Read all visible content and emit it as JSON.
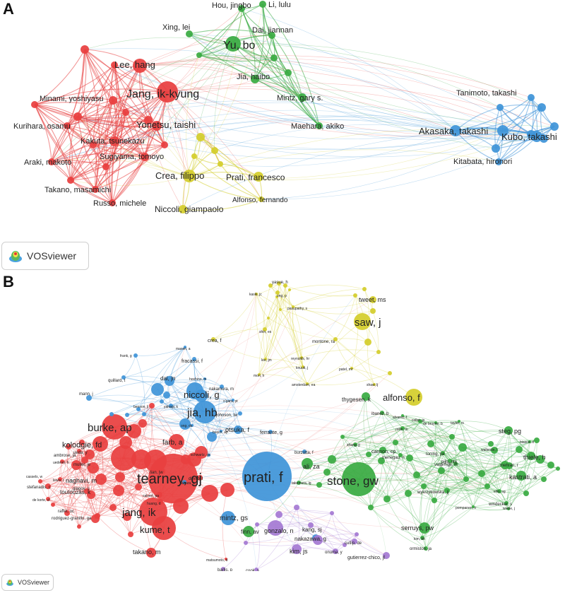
{
  "panels": {
    "a": {
      "letter": "A",
      "badge": "VOSviewer",
      "labels": [
        "Li, lulu",
        "Hou, jingbo",
        "Xing, lei",
        "Dai, jiannan",
        "Yu, bo",
        "Lee, hang",
        "Jang, ik-kyung",
        "Jia, haibo",
        "Minami, yoshiyasu",
        "Mintz, gary s.",
        "Tanimoto, takashi",
        "Yonetsu, taishi",
        "Kurihara, osamu",
        "Kakuta, tsunekazu",
        "Maehara, akiko",
        "Akasaka, takashi",
        "Kubo, takashi",
        "Sugiyama, tomoyo",
        "Araki, makoto",
        "Crea, filippo",
        "Prati, francesco",
        "Kitabata, hironori",
        "Takano, masamichi",
        "Alfonso, fernando",
        "Russo, michele",
        "Niccoli, giampaolo"
      ]
    },
    "b": {
      "letter": "B",
      "badge": "VOSviewer",
      "labels": [
        "yasue, h",
        "kaski, jc",
        "ong, p",
        "pasupathy, s",
        "tweet, ms",
        "saw, j",
        "shin, es",
        "crea, f",
        "montone, ra",
        "maseri, a",
        "frank, g",
        "fracassi, f",
        "reynolds, hr",
        "lee, jm",
        "knuuti, j",
        "patel, mr",
        "hoshino, m",
        "mori, h",
        "quillard, t",
        "dai, jn",
        "amsterdam, ea",
        "nakamura, m",
        "niccoli, g",
        "shaw, lj",
        "mann, j",
        "alfonso, f",
        "thygesen, k",
        "o'gara, pt",
        "johnson, tw",
        "benson, jl",
        "yahagi, k",
        "jia, hb",
        "ibanez, b",
        "collet, jp",
        "burke, ap",
        "ong, ds",
        "otsuka, f",
        "rollin, m",
        "ferrante, g",
        "alvarez, f",
        "de bruyne, b",
        "farb, a",
        "kolodgie, fd",
        "taylor, rs",
        "steg, pg",
        "ambrose, ja",
        "busch, ap",
        "toning, pa",
        "biasco, d",
        "thiele, h",
        "muller, je",
        "schwartz, gs",
        "tearney, gj",
        "prati, f",
        "stone, gw",
        "ali, za",
        "burzotta, f",
        "cannon, cp",
        "pijls, nhj",
        "naghavi, m",
        "glagov, s",
        "menegau, n",
        "wallentin, l",
        "cassels, w",
        "stefanadis, c",
        "huang, d",
        "calvert, pa",
        "valgimigli, m",
        "kastrati, a",
        "toutouzas, k",
        "jang, ik",
        "tian, jw",
        "di vito, l",
        "mintz, gs",
        "wykrzykowska, jj",
        "ellis, sg",
        "de korte, cl",
        "raffel, oc",
        "kume, t",
        "mehran, r",
        "rodriguez-granillo, ga",
        "finn, av",
        "kang, sj",
        "serruys, pw",
        "windecker, s",
        "pompanen, o",
        "wiebe, j",
        "takano, m",
        "gonzalo, n",
        "nakazawa, g",
        "onuma, y",
        "cutlip, de",
        "kim, bk",
        "matsumoto, d",
        "kim, js",
        "gutierrez-chico, jl",
        "ormiston, ja",
        "barlis, p",
        "cook, s",
        "lewis, t",
        "uederer, h",
        "ueda, y",
        "sahara, s",
        "zhang, jj",
        "takemura, ig"
      ]
    }
  }
}
